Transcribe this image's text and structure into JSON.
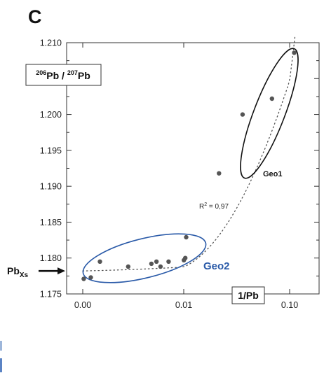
{
  "chart_data": {
    "type": "scatter",
    "panel_letter": "C",
    "ylabel": {
      "a_sup": "206",
      "a": "Pb",
      "sep": " / ",
      "b_sup": "207",
      "b": "Pb"
    },
    "xlabel": "1/Pb",
    "x_scale": "nonlinear",
    "ylim": [
      1.175,
      1.21
    ],
    "y_ticks": [
      "1.175",
      "1.180",
      "1.185",
      "1.190",
      "1.195",
      "1.200",
      "1.205",
      "1.210"
    ],
    "x_ticks": [
      "0.00",
      "0.01",
      "0.10"
    ],
    "grid": false,
    "points": [
      {
        "x": 0.0001,
        "y": 1.1771
      },
      {
        "x": 0.0008,
        "y": 1.1773
      },
      {
        "x": 0.0017,
        "y": 1.1795
      },
      {
        "x": 0.0045,
        "y": 1.1788
      },
      {
        "x": 0.0068,
        "y": 1.1792
      },
      {
        "x": 0.0073,
        "y": 1.1795
      },
      {
        "x": 0.0077,
        "y": 1.1788
      },
      {
        "x": 0.0085,
        "y": 1.1795
      },
      {
        "x": 0.0101,
        "y": 1.1797
      },
      {
        "x": 0.0113,
        "y": 1.18
      },
      {
        "x": 0.0121,
        "y": 1.1829
      },
      {
        "x": 0.04,
        "y": 1.1918
      },
      {
        "x": 0.06,
        "y": 1.2
      },
      {
        "x": 0.085,
        "y": 1.2022
      },
      {
        "x": 0.11,
        "y": 1.2086
      }
    ],
    "fit_curve": {
      "style": "dotted",
      "label_main": "R",
      "label_sup": "2",
      "label_tail": " = 0,97"
    },
    "groups": [
      {
        "name": "Geo1",
        "color": "#111111"
      },
      {
        "name": "Geo2",
        "color": "#2a5aa8"
      }
    ],
    "annotation_arrow": {
      "label_main": "Pb",
      "label_sub": "Xs",
      "y": 1.1782
    }
  },
  "colors": {
    "points": "#555555",
    "geo1": "#111111",
    "geo2": "#2a5aa8",
    "axis": "#333333"
  }
}
